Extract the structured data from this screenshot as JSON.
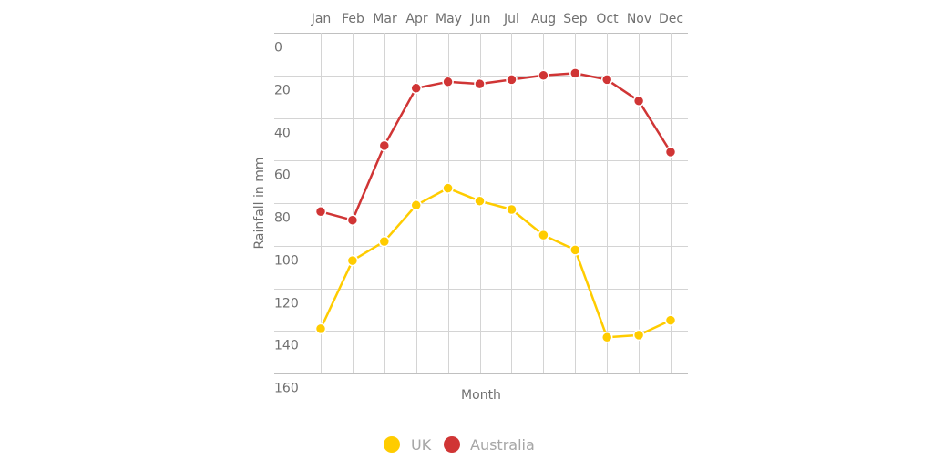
{
  "chart_data": {
    "type": "line",
    "title": "",
    "xlabel": "Month",
    "ylabel": "Rainfall in mm",
    "categories": [
      "Jan",
      "Feb",
      "Mar",
      "Apr",
      "May",
      "Jun",
      "Jul",
      "Aug",
      "Sep",
      "Oct",
      "Nov",
      "Dec"
    ],
    "ylim": [
      0,
      160
    ],
    "y_inverted": true,
    "y_ticks": [
      0,
      20,
      40,
      60,
      80,
      100,
      120,
      140,
      160
    ],
    "x_axis_position": "top",
    "grid": true,
    "legend_position": "bottom",
    "series": [
      {
        "name": "UK",
        "color": "#FFCC00",
        "values": [
          139,
          107,
          98,
          81,
          73,
          79,
          83,
          95,
          102,
          143,
          142,
          135
        ]
      },
      {
        "name": "Australia",
        "color": "#D03535",
        "values": [
          84,
          88,
          53,
          26,
          23,
          24,
          22,
          20,
          19,
          22,
          32,
          56
        ]
      }
    ]
  },
  "legend": {
    "items": [
      {
        "label": "UK",
        "color": "#FFCC00"
      },
      {
        "label": "Australia",
        "color": "#D03535"
      }
    ]
  }
}
